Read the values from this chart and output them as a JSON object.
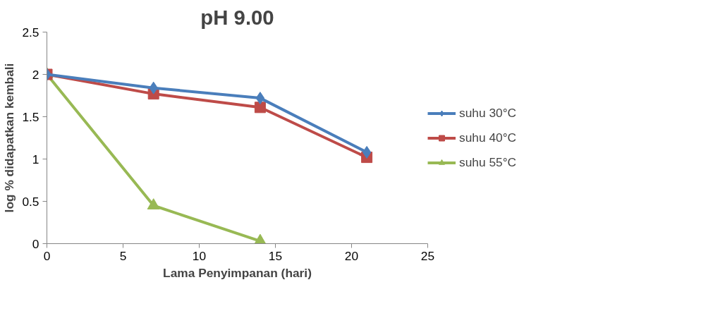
{
  "chart_data": {
    "type": "line",
    "title": "pH 9.00",
    "xlabel": "Lama Penyimpanan (hari)",
    "ylabel": "log % didapatkan kembali",
    "xlim": [
      0,
      25
    ],
    "xticks": [
      0,
      5,
      10,
      15,
      20,
      25
    ],
    "ylim": [
      0,
      2.5
    ],
    "yticks": [
      0,
      0.5,
      1,
      1.5,
      2,
      2.5
    ],
    "grid": false,
    "legend": "right",
    "series": [
      {
        "name": "suhu 30°C",
        "color": "#4a7ebb",
        "marker": "diamond",
        "x": [
          0,
          7,
          14,
          21
        ],
        "values": [
          2.0,
          1.84,
          1.72,
          1.08
        ]
      },
      {
        "name": "suhu 40°C",
        "color": "#be4b48",
        "marker": "square",
        "x": [
          0,
          7,
          14,
          21
        ],
        "values": [
          2.0,
          1.77,
          1.61,
          1.02
        ]
      },
      {
        "name": "suhu 55°C",
        "color": "#98b954",
        "marker": "triangle",
        "x": [
          0,
          7,
          14
        ],
        "values": [
          2.0,
          0.45,
          0.03
        ]
      }
    ]
  }
}
